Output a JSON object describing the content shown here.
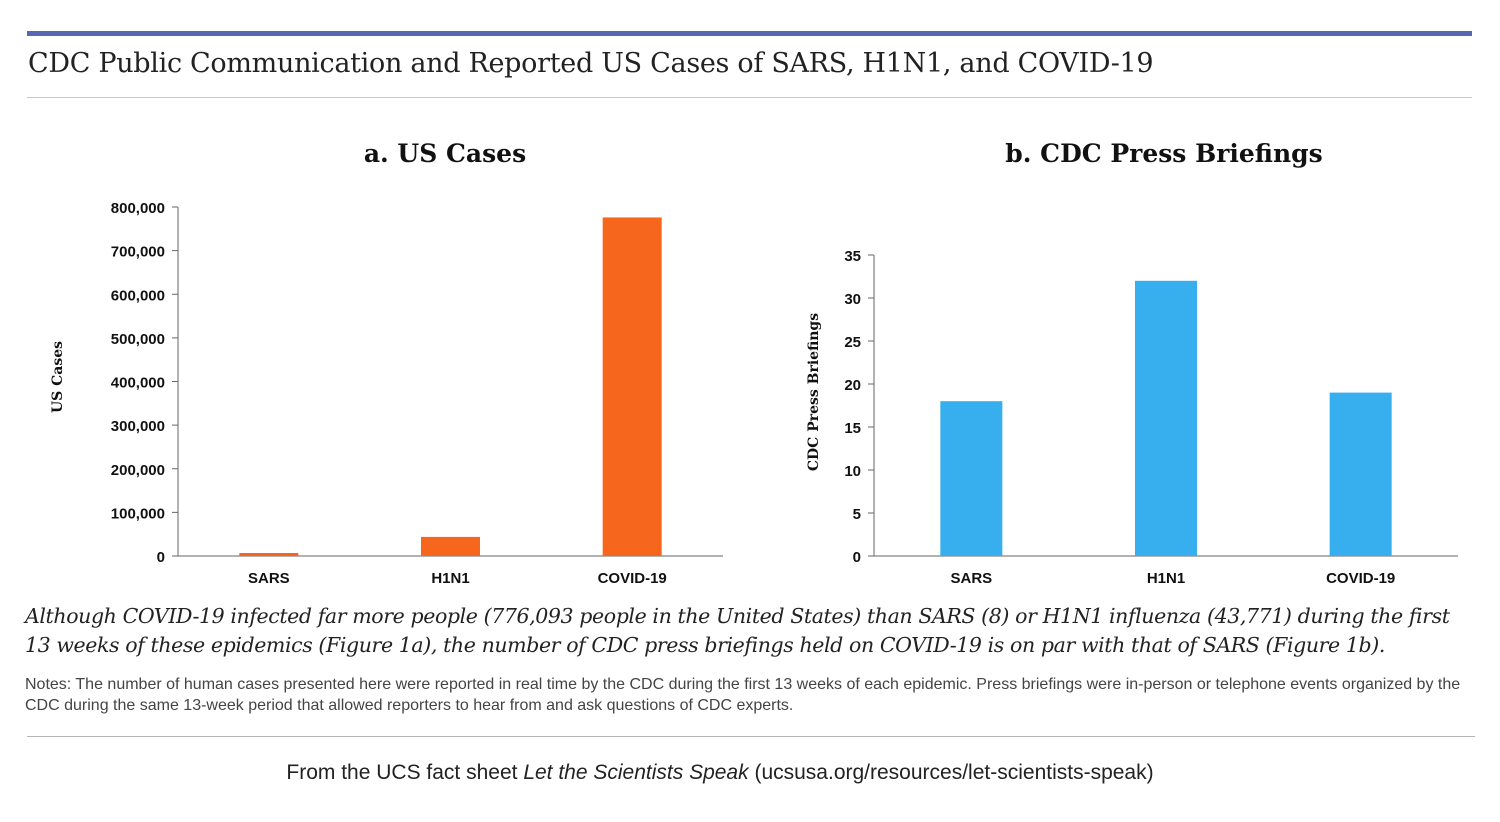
{
  "header": {
    "title": "CDC Public Communication and Reported US Cases of SARS, H1N1, and COVID-19"
  },
  "colors": {
    "cases_bar": "#f7661d",
    "briefings_bar": "#37aeed",
    "top_rule": "#5566b5"
  },
  "chart_data": [
    {
      "type": "bar",
      "title": "a. US Cases",
      "xlabel": "",
      "ylabel": "US Cases",
      "categories": [
        "SARS",
        "H1N1",
        "COVID-19"
      ],
      "values": [
        8,
        43771,
        776093
      ],
      "ylim": [
        0,
        800000
      ],
      "yticks": [
        0,
        100000,
        200000,
        300000,
        400000,
        500000,
        600000,
        700000,
        800000
      ],
      "ytick_labels": [
        "0",
        "100,000",
        "200,000",
        "300,000",
        "400,000",
        "500,000",
        "600,000",
        "700,000",
        "800,000"
      ],
      "grid": false
    },
    {
      "type": "bar",
      "title": "b. CDC Press Briefings",
      "xlabel": "",
      "ylabel": "CDC Press Briefings",
      "categories": [
        "SARS",
        "H1N1",
        "COVID-19"
      ],
      "values": [
        18,
        32,
        19
      ],
      "ylim": [
        0,
        35
      ],
      "yticks": [
        0,
        5,
        10,
        15,
        20,
        25,
        30,
        35
      ],
      "ytick_labels": [
        "0",
        "5",
        "10",
        "15",
        "20",
        "25",
        "30",
        "35"
      ],
      "grid": false
    }
  ],
  "caption": "Although COVID-19 infected far more people (776,093 people in the United States) than SARS (8) or H1N1 influenza (43,771) during the first 13 weeks of these epidemics (Figure 1a), the number of CDC press briefings held on COVID-19 is on par with that of SARS (Figure 1b).",
  "notes": "Notes: The number of human cases presented here were reported in real time by the CDC during the first 13 weeks of each epidemic. Press briefings were in-person or telephone events organized by the CDC during the same 13-week period that allowed reporters to hear from and ask questions of CDC experts.",
  "footer": {
    "prefix": "From the UCS fact sheet ",
    "source_title": "Let the Scientists Speak",
    "suffix": " (ucsusa.org/resources/let-scientists-speak)"
  }
}
